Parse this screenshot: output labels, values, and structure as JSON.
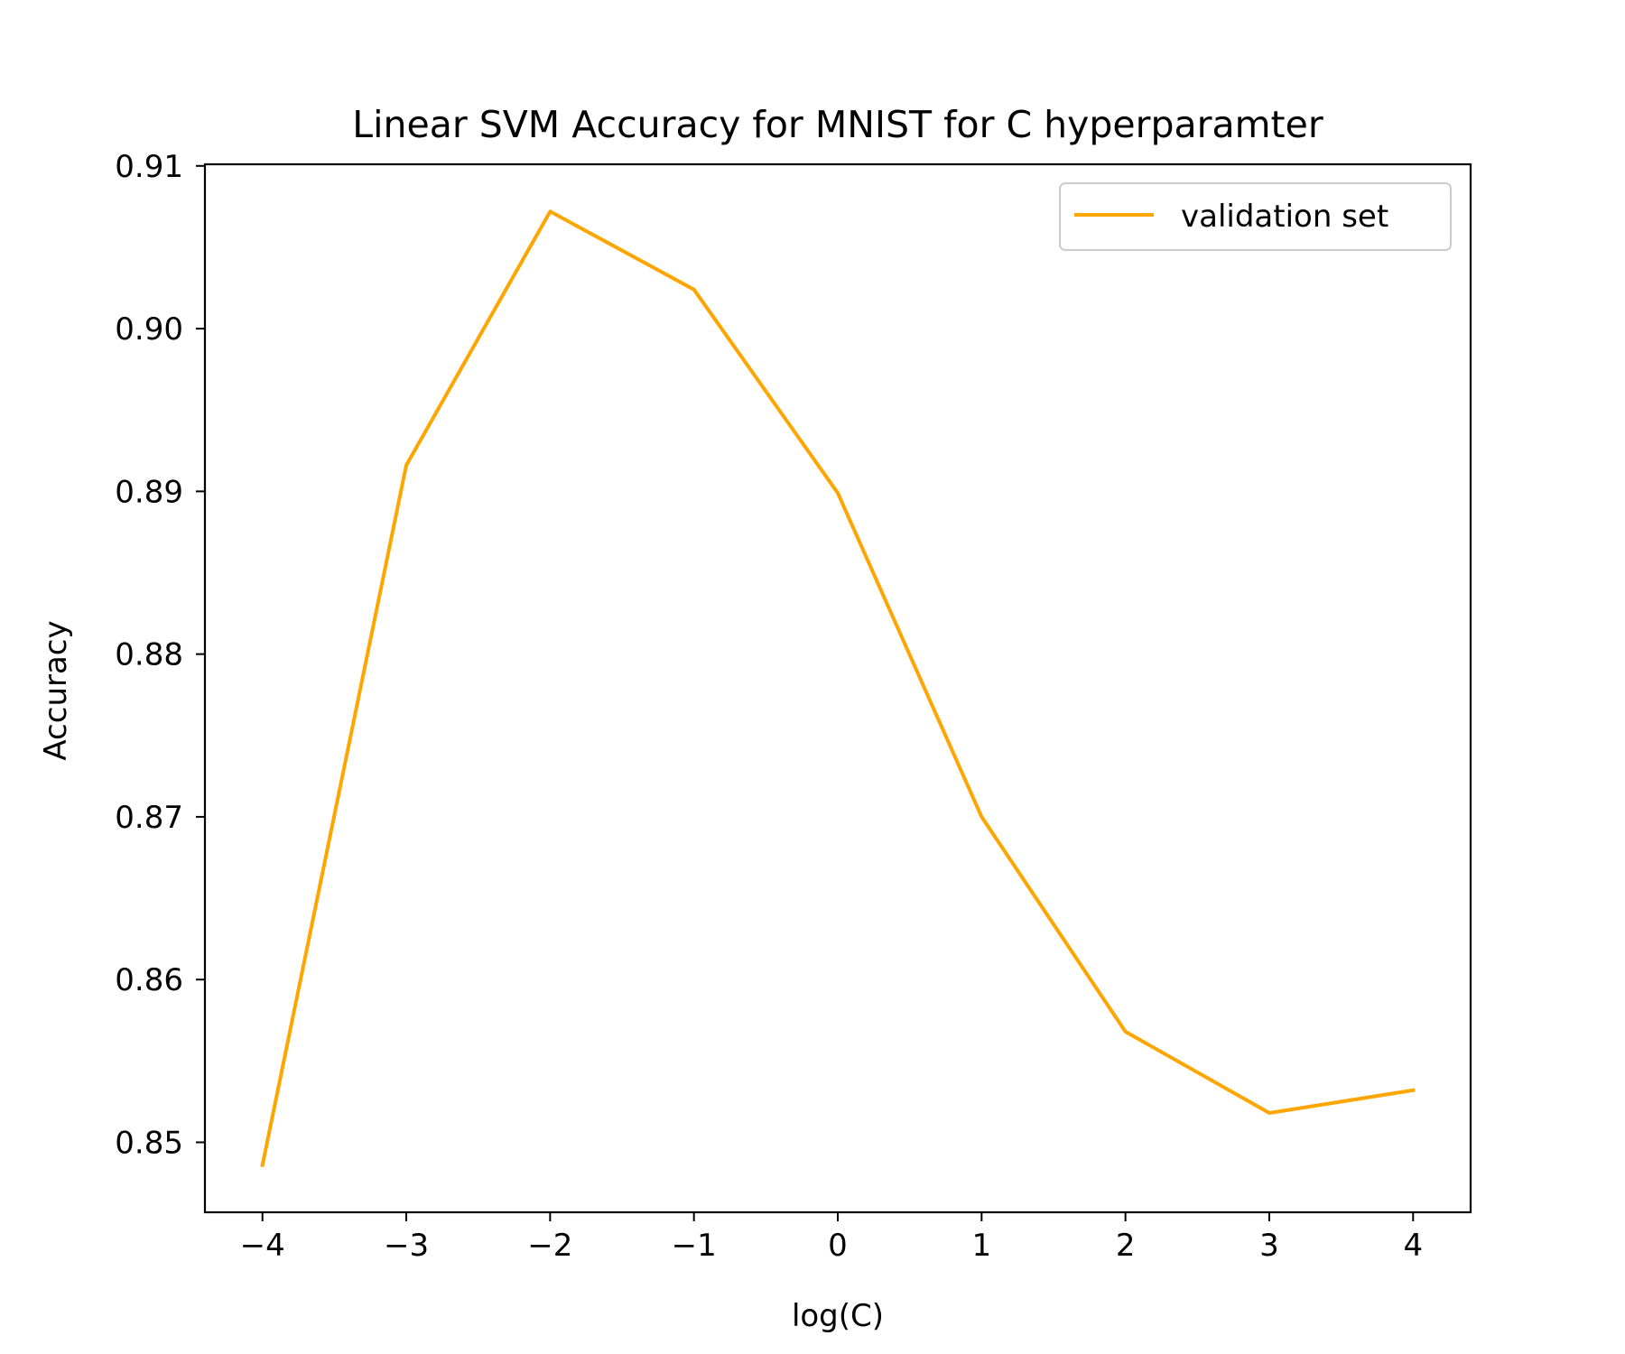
{
  "chart_data": {
    "type": "line",
    "title": "Linear SVM Accuracy for MNIST for C hyperparamter",
    "xlabel": "log(C)",
    "ylabel": "Accuracy",
    "xlim": [
      -4.4,
      4.4
    ],
    "ylim": [
      0.8457,
      0.9101
    ],
    "x_ticks": [
      -4,
      -3,
      -2,
      -1,
      0,
      1,
      2,
      3,
      4
    ],
    "x_tick_labels": [
      "−4",
      "−3",
      "−2",
      "−1",
      "0",
      "1",
      "2",
      "3",
      "4"
    ],
    "y_ticks": [
      0.85,
      0.86,
      0.87,
      0.88,
      0.89,
      0.9,
      0.91
    ],
    "y_tick_labels": [
      "0.85",
      "0.86",
      "0.87",
      "0.88",
      "0.89",
      "0.90",
      "0.91"
    ],
    "grid": false,
    "legend_position": "top-right",
    "series": [
      {
        "name": "validation set",
        "color": "#ffa500",
        "x": [
          -4,
          -3,
          -2,
          -1,
          0,
          1,
          2,
          3,
          4
        ],
        "y": [
          0.8486,
          0.8916,
          0.9072,
          0.9024,
          0.8899,
          0.87,
          0.8568,
          0.8518,
          0.8532
        ]
      }
    ]
  }
}
